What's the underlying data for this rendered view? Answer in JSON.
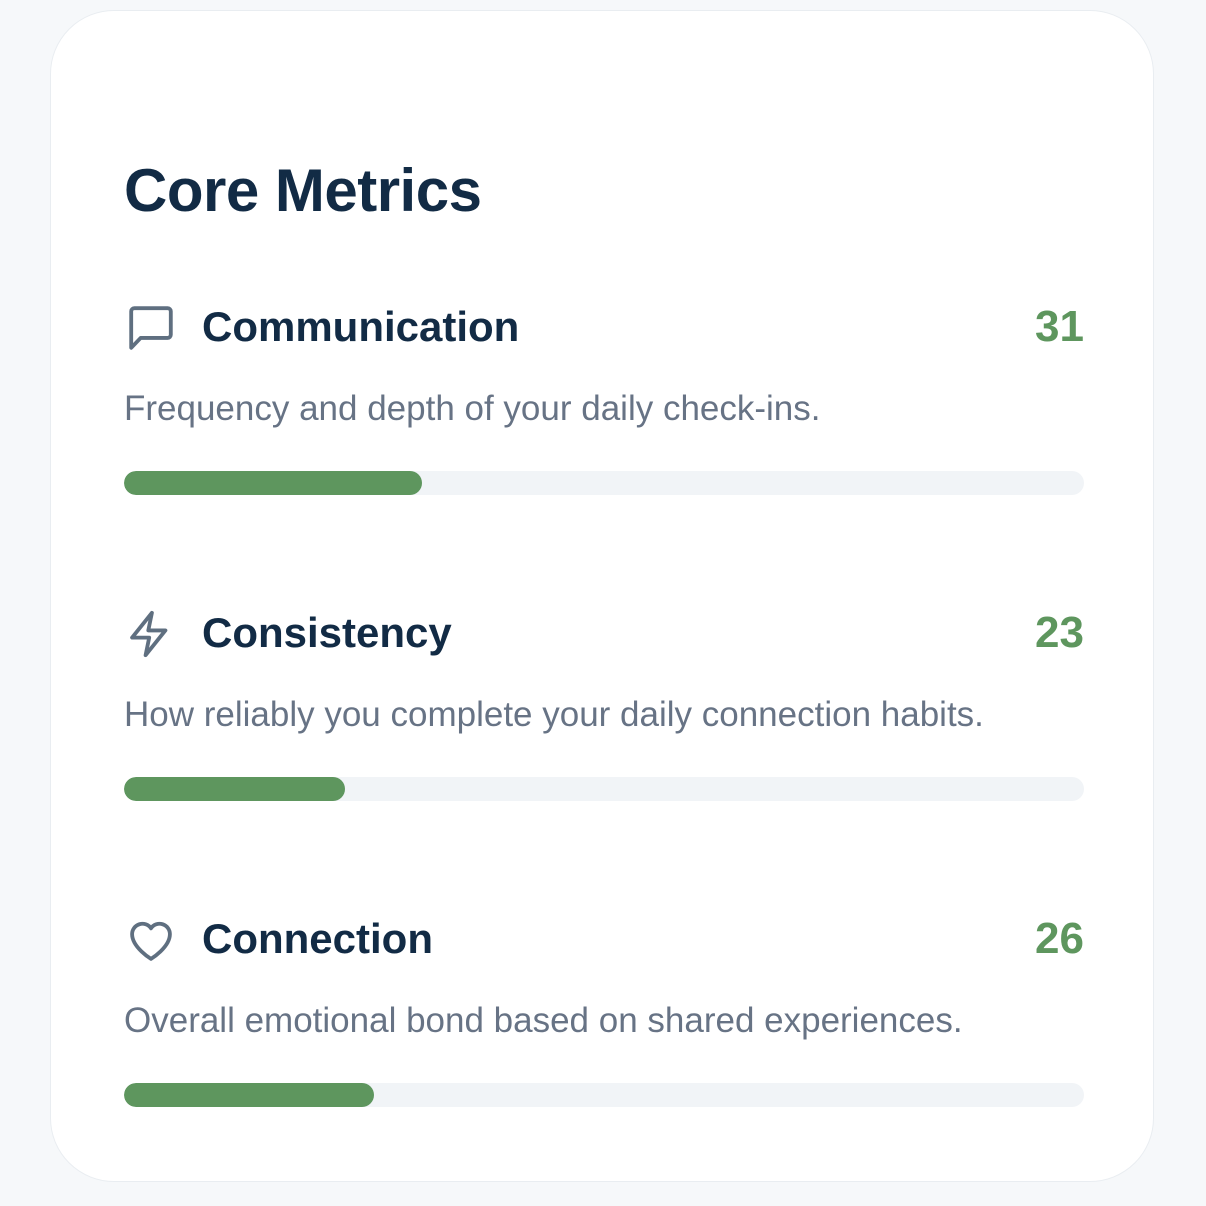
{
  "card": {
    "title": "Core Metrics"
  },
  "metrics": [
    {
      "icon": "message-square-icon",
      "name": "Communication",
      "value": "31",
      "progress_percent": 31,
      "description": "Frequency and depth of your daily check-ins."
    },
    {
      "icon": "lightning-bolt-icon",
      "name": "Consistency",
      "value": "23",
      "progress_percent": 23,
      "description": "How reliably you complete your daily connection habits."
    },
    {
      "icon": "heart-icon",
      "name": "Connection",
      "value": "26",
      "progress_percent": 26,
      "description": "Overall emotional bond based on shared experiences."
    }
  ],
  "colors": {
    "accent": "#5e965e",
    "heading": "#122b45",
    "muted_text": "#677385",
    "track": "#f1f4f7",
    "icon": "#5f6f80"
  }
}
